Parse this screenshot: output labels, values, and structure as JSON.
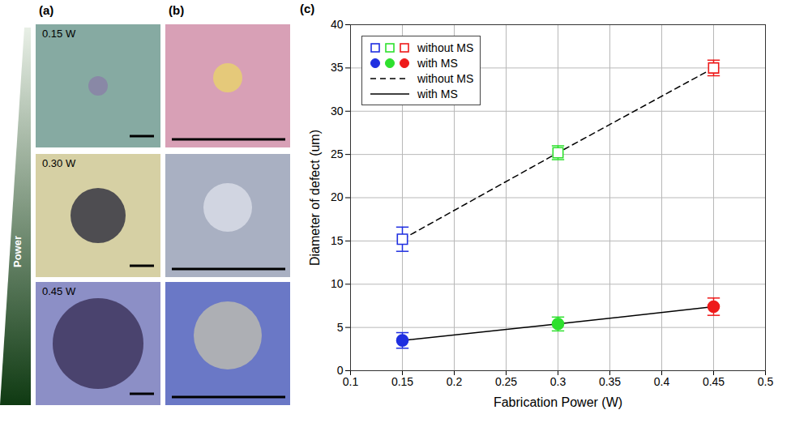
{
  "chart_data": {
    "type": "scatter",
    "x_label": "Fabrication Power (W)",
    "y_label": "Diameter of defect (um)",
    "x": [
      0.15,
      0.3,
      0.45
    ],
    "series": [
      {
        "name": "without MS",
        "marker": "open square",
        "line_style": "dashed",
        "colors": [
          "#1f2fe0",
          "#2ee02e",
          "#ee1a1a"
        ],
        "values": [
          15.2,
          25.2,
          35.0
        ],
        "errors": [
          1.4,
          0.8,
          0.9
        ]
      },
      {
        "name": "with MS",
        "marker": "circle",
        "line_style": "solid",
        "colors": [
          "#1f2fe0",
          "#2ee02e",
          "#ee1a1a"
        ],
        "values": [
          3.5,
          5.4,
          7.4
        ],
        "errors": [
          0.9,
          0.8,
          1.0
        ]
      }
    ],
    "xlim": [
      0.1,
      0.5
    ],
    "xticks": [
      0.1,
      0.15,
      0.2,
      0.25,
      0.3,
      0.35,
      0.4,
      0.45,
      0.5
    ],
    "ylim": [
      0,
      40
    ],
    "yticks": [
      0,
      5,
      10,
      15,
      20,
      25,
      30,
      35,
      40
    ],
    "grid": true,
    "legend": "upper left"
  },
  "figure": {
    "panel_labels": [
      "(a)",
      "(b)",
      "(c)"
    ],
    "power_label": "Power",
    "power_levels": [
      "0.15 W",
      "0.30 W",
      "0.45 W"
    ]
  }
}
